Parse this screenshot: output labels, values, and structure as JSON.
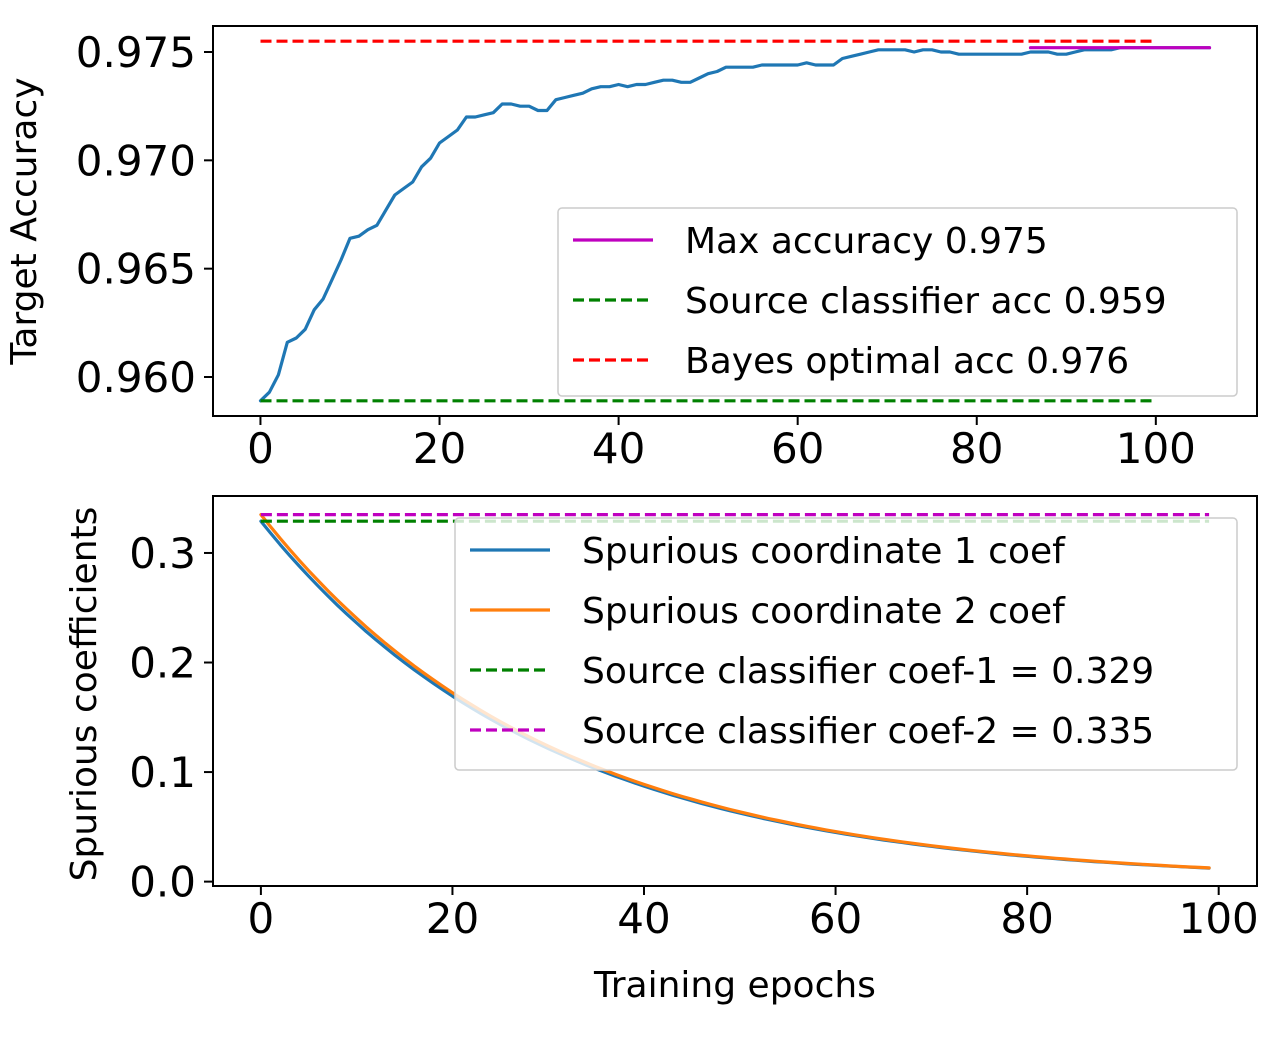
{
  "chart_data": [
    {
      "type": "line",
      "xlabel": "",
      "ylabel": "Target Accuracy",
      "xlim": [
        -5.3,
        111.3
      ],
      "ylim": [
        0.9582,
        0.9762
      ],
      "xticks": [
        0,
        20,
        40,
        60,
        80,
        100
      ],
      "xtick_labels": [
        "0",
        "20",
        "40",
        "60",
        "80",
        "100"
      ],
      "yticks": [
        0.96,
        0.965,
        0.97,
        0.975
      ],
      "ytick_labels": [
        "0.960",
        "0.965",
        "0.970",
        "0.975"
      ],
      "legend_position": "lower-right",
      "series": [
        {
          "name": "Target accuracy",
          "color": "#1f77b4",
          "style": "solid",
          "in_legend": false,
          "x": [
            0,
            1,
            2,
            3,
            4,
            5,
            6,
            7,
            8,
            9,
            10,
            11,
            12,
            13,
            14,
            15,
            16,
            17,
            18,
            19,
            20,
            21,
            22,
            23,
            24,
            25,
            26,
            27,
            28,
            29,
            30,
            31,
            32,
            33,
            34,
            35,
            36,
            37,
            38,
            39,
            40,
            41,
            42,
            43,
            44,
            45,
            46,
            47,
            48,
            49,
            50,
            51,
            52,
            53,
            54,
            55,
            56,
            57,
            58,
            59,
            60,
            61,
            62,
            63,
            64,
            65,
            66,
            67,
            68,
            69,
            70,
            71,
            72,
            73,
            74,
            75,
            76,
            77,
            78,
            79,
            80,
            81,
            82,
            83,
            84,
            85,
            86,
            87,
            88,
            89,
            90,
            91,
            92,
            93,
            94,
            95,
            96,
            97,
            98,
            99,
            100,
            101,
            102,
            103,
            104,
            105,
            106
          ],
          "y": [
            0.9589,
            0.9593,
            0.9601,
            0.9616,
            0.9618,
            0.9622,
            0.9631,
            0.9636,
            0.9645,
            0.9654,
            0.9664,
            0.9665,
            0.9668,
            0.967,
            0.9677,
            0.9684,
            0.9687,
            0.969,
            0.9697,
            0.9701,
            0.9708,
            0.9711,
            0.9714,
            0.972,
            0.972,
            0.9721,
            0.9722,
            0.9726,
            0.9726,
            0.9725,
            0.9725,
            0.9723,
            0.9723,
            0.9728,
            0.9729,
            0.973,
            0.9731,
            0.9733,
            0.9734,
            0.9734,
            0.9735,
            0.9734,
            0.9735,
            0.9735,
            0.9736,
            0.9737,
            0.9737,
            0.9736,
            0.9736,
            0.9738,
            0.974,
            0.9741,
            0.9743,
            0.9743,
            0.9743,
            0.9743,
            0.9744,
            0.9744,
            0.9744,
            0.9744,
            0.9744,
            0.9745,
            0.9744,
            0.9744,
            0.9744,
            0.9747,
            0.9748,
            0.9749,
            0.975,
            0.9751,
            0.9751,
            0.9751,
            0.9751,
            0.975,
            0.9751,
            0.9751,
            0.975,
            0.975,
            0.9749,
            0.9749,
            0.9749,
            0.9749,
            0.9749,
            0.9749,
            0.9749,
            0.9749,
            0.975,
            0.975,
            0.975,
            0.9749,
            0.9749,
            0.975,
            0.9751,
            0.9751,
            0.9751,
            0.9751,
            0.9752,
            0.9752,
            0.9752,
            0.9752,
            0.9752,
            0.9752,
            0.9752,
            0.9752,
            0.9752,
            0.9752,
            0.9752
          ]
        },
        {
          "name": "Max accuracy 0.975",
          "color": "#bf00bf",
          "style": "solid",
          "in_legend": true,
          "x": [
            86,
            106
          ],
          "y": [
            0.9752,
            0.9752
          ]
        },
        {
          "name": "Source classifier acc 0.959",
          "color": "#008000",
          "style": "dashed",
          "in_legend": true,
          "x": [
            0,
            100
          ],
          "y": [
            0.9589,
            0.9589
          ]
        },
        {
          "name": "Bayes optimal acc 0.976",
          "color": "#ff0000",
          "style": "dashed",
          "in_legend": true,
          "x": [
            0,
            100
          ],
          "y": [
            0.9755,
            0.9755
          ]
        }
      ]
    },
    {
      "type": "line",
      "xlabel": "Training epochs",
      "ylabel": "Spurious coefficients",
      "xlim": [
        -5,
        104
      ],
      "ylim": [
        -0.004,
        0.352
      ],
      "xticks": [
        0,
        20,
        40,
        60,
        80,
        100
      ],
      "xtick_labels": [
        "0",
        "20",
        "40",
        "60",
        "80",
        "100"
      ],
      "yticks": [
        0.0,
        0.1,
        0.2,
        0.3
      ],
      "ytick_labels": [
        "0.0",
        "0.1",
        "0.2",
        "0.3"
      ],
      "legend_position": "upper-right",
      "series": [
        {
          "name": "Spurious coordinate 1 coef",
          "color": "#1f77b4",
          "style": "solid",
          "in_legend": true,
          "decay": {
            "start": 0.329,
            "rate": 0.0332,
            "epochs": 99
          }
        },
        {
          "name": "Spurious coordinate 2 coef",
          "color": "#ff7f0e",
          "style": "solid",
          "in_legend": true,
          "decay": {
            "start": 0.335,
            "rate": 0.0332,
            "epochs": 99
          }
        },
        {
          "name": "Source classifier coef-1 = 0.329",
          "color": "#008000",
          "style": "dashed",
          "in_legend": true,
          "x": [
            0,
            99
          ],
          "y": [
            0.329,
            0.329
          ]
        },
        {
          "name": "Source classifier coef-2 = 0.335",
          "color": "#bf00bf",
          "style": "dashed",
          "in_legend": true,
          "x": [
            0,
            99
          ],
          "y": [
            0.335,
            0.335
          ]
        }
      ]
    }
  ]
}
